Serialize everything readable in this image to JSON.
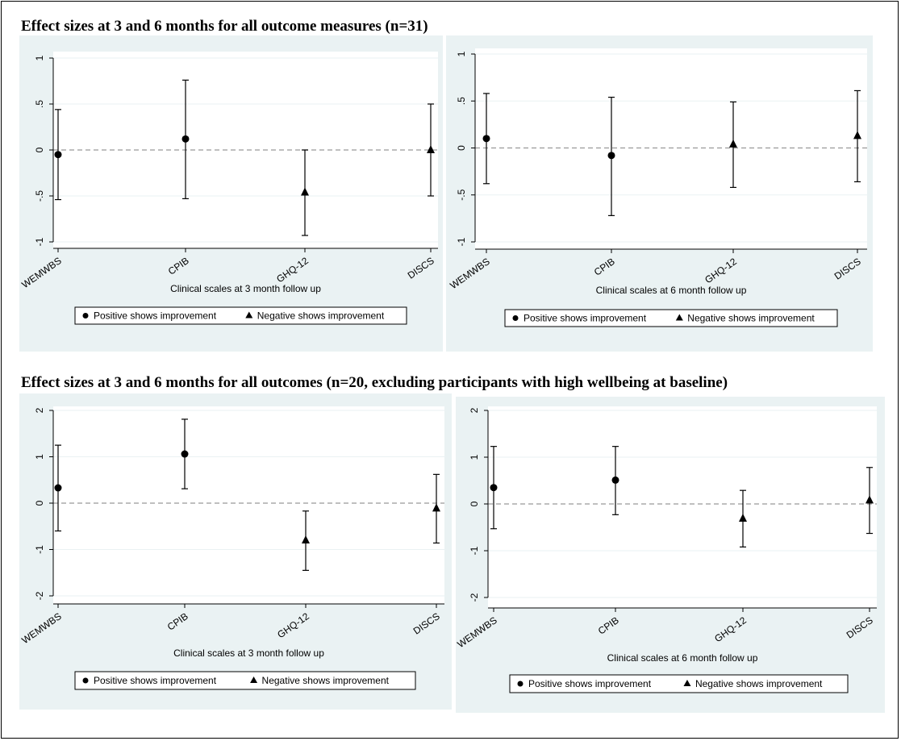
{
  "section_titles": [
    "Effect sizes at 3 and 6 months for all outcome measures (n=31)",
    "Effect sizes at 3 and 6 months for all outcomes (n=20, excluding participants with high wellbeing at baseline)"
  ],
  "colors": {
    "panel_bg": "#eaf2f3",
    "plot_bg": "#ffffff",
    "grid": "#eaf2f3",
    "zero_line": "#999999",
    "marker": "#000000",
    "legend_border": "#000000"
  },
  "chart_data": [
    {
      "type": "scatter",
      "subtype": "error-bar",
      "section": 0,
      "categories": [
        "WEMWBS",
        "CPIB",
        "GHQ-12",
        "DISCS"
      ],
      "xlabel": "Clinical scales at 3 month follow up",
      "ylim": [
        -1,
        1
      ],
      "yticks": [
        -1,
        -0.5,
        0,
        0.5,
        1
      ],
      "ytick_labels": [
        "-1",
        "-.5",
        "0",
        ".5",
        "1"
      ],
      "reference_line": 0,
      "grid": true,
      "values": [
        -0.05,
        0.12,
        -0.46,
        0.0
      ],
      "lower": [
        -0.54,
        -0.53,
        -0.93,
        -0.5
      ],
      "upper": [
        0.44,
        0.76,
        0.0,
        0.5
      ],
      "markers": [
        "circle",
        "circle",
        "triangle",
        "triangle"
      ],
      "legend": {
        "position": "bottom",
        "entries": [
          {
            "marker": "circle",
            "label": "Positive shows improvement"
          },
          {
            "marker": "triangle",
            "label": "Negative shows improvement"
          }
        ]
      }
    },
    {
      "type": "scatter",
      "subtype": "error-bar",
      "section": 0,
      "categories": [
        "WEMWBS",
        "CPIB",
        "GHQ-12",
        "DISCS"
      ],
      "xlabel": "Clinical scales at 6 month follow up",
      "ylim": [
        -1,
        1
      ],
      "yticks": [
        -1,
        -0.5,
        0,
        0.5,
        1
      ],
      "ytick_labels": [
        "-1",
        "-.5",
        "0",
        ".5",
        "1"
      ],
      "reference_line": 0,
      "grid": true,
      "values": [
        0.1,
        -0.08,
        0.04,
        0.13
      ],
      "lower": [
        -0.38,
        -0.72,
        -0.42,
        -0.36
      ],
      "upper": [
        0.58,
        0.54,
        0.49,
        0.61
      ],
      "markers": [
        "circle",
        "circle",
        "triangle",
        "triangle"
      ],
      "legend": {
        "position": "bottom",
        "entries": [
          {
            "marker": "circle",
            "label": "Positive shows improvement"
          },
          {
            "marker": "triangle",
            "label": "Negative shows improvement"
          }
        ]
      }
    },
    {
      "type": "scatter",
      "subtype": "error-bar",
      "section": 1,
      "categories": [
        "WEMWBS",
        "CPIB",
        "GHQ-12",
        "DISCS"
      ],
      "xlabel": "Clinical scales at 3 month follow up",
      "ylim": [
        -2,
        2
      ],
      "yticks": [
        -2,
        -1,
        0,
        1,
        2
      ],
      "ytick_labels": [
        "-2",
        "-1",
        "0",
        "1",
        "2"
      ],
      "reference_line": 0,
      "grid": true,
      "values": [
        0.33,
        1.06,
        -0.8,
        -0.11
      ],
      "lower": [
        -0.6,
        0.31,
        -1.45,
        -0.86
      ],
      "upper": [
        1.25,
        1.81,
        -0.17,
        0.62
      ],
      "markers": [
        "circle",
        "circle",
        "triangle",
        "triangle"
      ],
      "legend": {
        "position": "bottom",
        "entries": [
          {
            "marker": "circle",
            "label": "Positive shows improvement"
          },
          {
            "marker": "triangle",
            "label": "Negative shows improvement"
          }
        ]
      }
    },
    {
      "type": "scatter",
      "subtype": "error-bar",
      "section": 1,
      "categories": [
        "WEMWBS",
        "CPIB",
        "GHQ-12",
        "DISCS"
      ],
      "xlabel": "Clinical scales at 6 month follow up",
      "ylim": [
        -2,
        2
      ],
      "yticks": [
        -2,
        -1,
        0,
        1,
        2
      ],
      "ytick_labels": [
        "-2",
        "-1",
        "0",
        "1",
        "2"
      ],
      "reference_line": 0,
      "grid": true,
      "values": [
        0.35,
        0.51,
        -0.31,
        0.08
      ],
      "lower": [
        -0.53,
        -0.23,
        -0.92,
        -0.63
      ],
      "upper": [
        1.23,
        1.23,
        0.29,
        0.78
      ],
      "markers": [
        "circle",
        "circle",
        "triangle",
        "triangle"
      ],
      "legend": {
        "position": "bottom",
        "entries": [
          {
            "marker": "circle",
            "label": "Positive shows improvement"
          },
          {
            "marker": "triangle",
            "label": "Negative shows improvement"
          }
        ]
      }
    }
  ]
}
